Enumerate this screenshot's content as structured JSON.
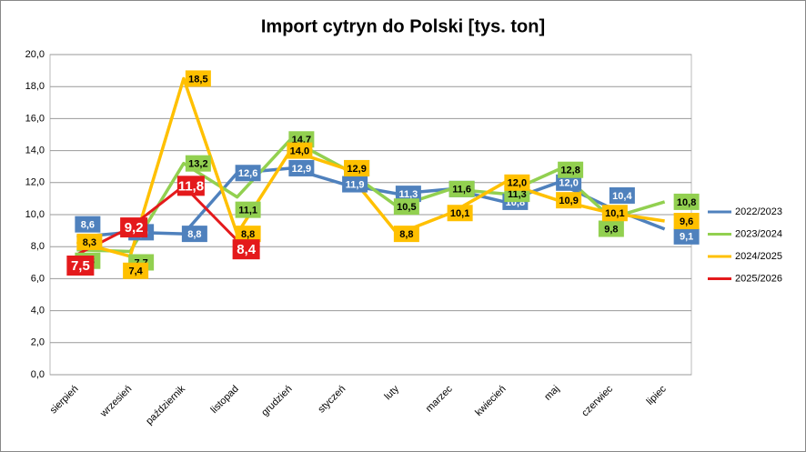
{
  "chart_data": {
    "type": "line",
    "title": "Import cytryn do Polski [tys. ton]",
    "categories": [
      "sierpień",
      "wrzesień",
      "październik",
      "listopad",
      "grudzień",
      "styczeń",
      "luty",
      "marzec",
      "kwiecień",
      "maj",
      "czerwiec",
      "lipiec"
    ],
    "series": [
      {
        "name": "2022/2023",
        "color": "#4f81bd",
        "values": [
          8.6,
          8.9,
          8.8,
          12.6,
          12.9,
          11.9,
          11.3,
          11.6,
          10.8,
          12.0,
          10.4,
          9.1
        ],
        "value_labels": [
          "8,6",
          "8,9",
          "8,8",
          "12,6",
          "12,9",
          "11,9",
          "11,3",
          "11,6",
          "10,8",
          "12,0",
          "10,4",
          "9,1"
        ]
      },
      {
        "name": "2023/2024",
        "color": "#92d050",
        "values": [
          7.8,
          7.7,
          13.2,
          11.1,
          14.7,
          12.9,
          10.5,
          11.6,
          11.3,
          12.8,
          9.8,
          10.8
        ],
        "value_labels": [
          "7,8",
          "7,7",
          "13,2",
          "11,1",
          "14,7",
          "12,9",
          "10,5",
          "11,6",
          "11,3",
          "12,8",
          "9,8",
          "10,8"
        ]
      },
      {
        "name": "2024/2025",
        "color": "#ffc000",
        "values": [
          8.3,
          7.4,
          18.5,
          8.8,
          14.0,
          12.9,
          8.8,
          10.1,
          12.0,
          10.9,
          10.1,
          9.6
        ],
        "value_labels": [
          "8,3",
          "7,4",
          "18,5",
          "8,8",
          "14,0",
          "12,9",
          "8,8",
          "10,1",
          "12,0",
          "10,9",
          "10,1",
          "9,6"
        ]
      },
      {
        "name": "2025/2026",
        "color": "#e41a1c",
        "values": [
          7.5,
          9.2,
          11.8,
          8.4,
          null,
          null,
          null,
          null,
          null,
          null,
          null,
          null
        ],
        "value_labels": [
          "7,5",
          "9,2",
          "11,8",
          "8,4",
          null,
          null,
          null,
          null,
          null,
          null,
          null,
          null
        ]
      }
    ],
    "ylim": [
      0,
      20
    ],
    "yticks": [
      {
        "value": 0,
        "label": "0,0"
      },
      {
        "value": 2,
        "label": "2,0"
      },
      {
        "value": 4,
        "label": "4,0"
      },
      {
        "value": 6,
        "label": "6,0"
      },
      {
        "value": 8,
        "label": "8,0"
      },
      {
        "value": 10,
        "label": "10,0"
      },
      {
        "value": 12,
        "label": "12,0"
      },
      {
        "value": 14,
        "label": "14,0"
      },
      {
        "value": 16,
        "label": "16,0"
      },
      {
        "value": 18,
        "label": "18,0"
      },
      {
        "value": 20,
        "label": "20,0"
      }
    ],
    "grid": true,
    "legend": "right"
  }
}
